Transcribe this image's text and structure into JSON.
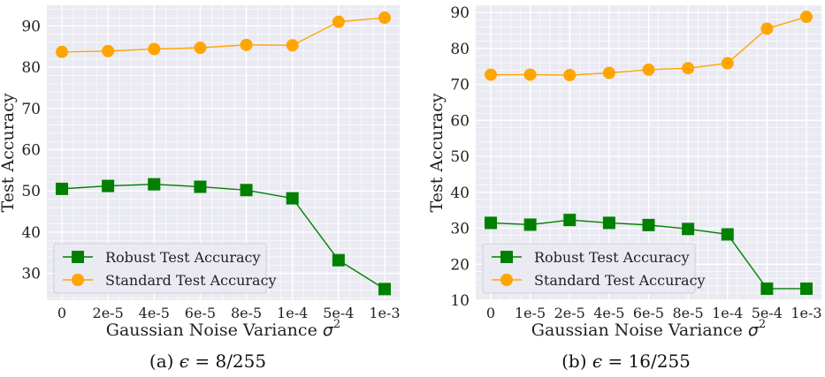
{
  "chart_data": [
    {
      "type": "line",
      "categories": [
        "0",
        "2e-5",
        "4e-5",
        "6e-5",
        "8e-5",
        "1e-4",
        "5e-4",
        "1e-3"
      ],
      "series": [
        {
          "name": "Robust Test Accuracy",
          "color": "#008000",
          "marker": "square",
          "values": [
            50.5,
            51.2,
            51.6,
            51.0,
            50.2,
            48.2,
            33.2,
            26.2
          ]
        },
        {
          "name": "Standard Test Accuracy",
          "color": "#FFA500",
          "marker": "circle",
          "values": [
            83.7,
            83.9,
            84.4,
            84.7,
            85.4,
            85.3,
            91.0,
            92.0
          ]
        }
      ],
      "xlabel": "Gaussian Noise Variance",
      "xlabel_symbol": "σ",
      "xlabel_exp": "2",
      "ylabel": "Test Accuracy",
      "ylim": [
        23.5,
        95.0
      ],
      "yticks": [
        30,
        40,
        50,
        60,
        70,
        80,
        90
      ],
      "grid": true,
      "legend": "bottom-left",
      "caption_prefix": "(a)",
      "caption_eps": "ϵ",
      "caption_rest": " = 8/255"
    },
    {
      "type": "line",
      "categories": [
        "0",
        "1e-5",
        "2e-5",
        "4e-5",
        "6e-5",
        "8e-5",
        "1e-4",
        "5e-4",
        "1e-3"
      ],
      "series": [
        {
          "name": "Robust Test Accuracy",
          "color": "#008000",
          "marker": "square",
          "values": [
            31.5,
            31.0,
            32.3,
            31.5,
            30.9,
            29.8,
            28.3,
            13.2,
            13.2
          ]
        },
        {
          "name": "Standard Test Accuracy",
          "color": "#FFA500",
          "marker": "circle",
          "values": [
            72.7,
            72.7,
            72.6,
            73.2,
            74.1,
            74.5,
            75.9,
            85.5,
            88.8
          ]
        }
      ],
      "xlabel": "Gaussian Noise Variance",
      "xlabel_symbol": "σ",
      "xlabel_exp": "2",
      "ylabel": "Test Accuracy",
      "ylim": [
        10.0,
        92.0
      ],
      "yticks": [
        10,
        20,
        30,
        40,
        50,
        60,
        70,
        80,
        90
      ],
      "grid": true,
      "legend": "bottom-left",
      "caption_prefix": "(b)",
      "caption_eps": "ϵ",
      "caption_rest": " = 16/255"
    }
  ]
}
